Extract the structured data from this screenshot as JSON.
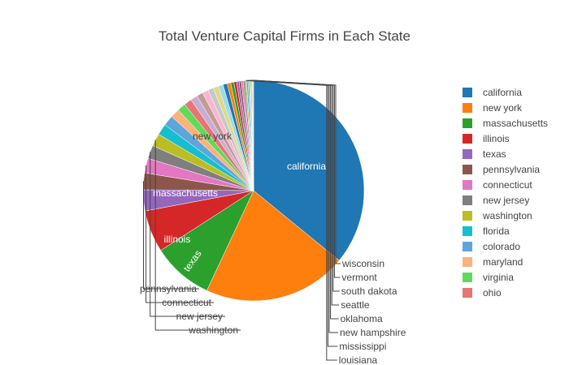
{
  "chart_data": {
    "type": "pie",
    "title": "Total Venture Capital Firms in Each State",
    "legend_position": "right",
    "slices": [
      {
        "label": "california",
        "value": 35.0,
        "color": "#1f77b4"
      },
      {
        "label": "new york",
        "value": 20.5,
        "color": "#ff7f0e"
      },
      {
        "label": "massachusetts",
        "value": 8.7,
        "color": "#2ca02c"
      },
      {
        "label": "illinois",
        "value": 6.0,
        "color": "#d62728"
      },
      {
        "label": "texas",
        "value": 3.0,
        "color": "#9467bd"
      },
      {
        "label": "pennsylvania",
        "value": 2.4,
        "color": "#8c564b"
      },
      {
        "label": "connecticut",
        "value": 2.1,
        "color": "#e377c2"
      },
      {
        "label": "new jersey",
        "value": 1.9,
        "color": "#7f7f7f"
      },
      {
        "label": "washington",
        "value": 1.8,
        "color": "#bcbd22"
      },
      {
        "label": "florida",
        "value": 1.6,
        "color": "#17becf"
      },
      {
        "label": "colorado",
        "value": 1.5,
        "color": "#5da5da"
      },
      {
        "label": "maryland",
        "value": 1.3,
        "color": "#fdb279"
      },
      {
        "label": "virginia",
        "value": 1.2,
        "color": "#62d95b"
      },
      {
        "label": "ohio",
        "value": 1.1,
        "color": "#e87474"
      },
      {
        "label": "",
        "value": 1.0,
        "color": "#c5b0d5"
      },
      {
        "label": "",
        "value": 0.9,
        "color": "#c49c94"
      },
      {
        "label": "",
        "value": 0.85,
        "color": "#f7b6d2"
      },
      {
        "label": "",
        "value": 0.8,
        "color": "#c7c7c7"
      },
      {
        "label": "",
        "value": 0.75,
        "color": "#dbdb8d"
      },
      {
        "label": "",
        "value": 0.7,
        "color": "#9edae5"
      },
      {
        "label": "",
        "value": 0.6,
        "color": "#1f77b4"
      },
      {
        "label": "",
        "value": 0.5,
        "color": "#ff7f0e"
      },
      {
        "label": "",
        "value": 0.45,
        "color": "#2ca02c"
      },
      {
        "label": "",
        "value": 0.4,
        "color": "#d62728"
      },
      {
        "label": "",
        "value": 0.35,
        "color": "#9467bd"
      },
      {
        "label": "",
        "value": 0.3,
        "color": "#8c564b"
      },
      {
        "label": "",
        "value": 0.3,
        "color": "#e377c2"
      },
      {
        "label": "",
        "value": 0.25,
        "color": "#7f7f7f"
      },
      {
        "label": "louisiana",
        "value": 0.2,
        "color": "#bcbd22"
      },
      {
        "label": "mississippi",
        "value": 0.2,
        "color": "#17becf"
      },
      {
        "label": "new hampshire",
        "value": 0.2,
        "color": "#5da5da"
      },
      {
        "label": "oklahoma",
        "value": 0.15,
        "color": "#fdb279"
      },
      {
        "label": "seattle",
        "value": 0.15,
        "color": "#62d95b"
      },
      {
        "label": "south dakota",
        "value": 0.1,
        "color": "#e87474"
      },
      {
        "label": "vermont",
        "value": 0.1,
        "color": "#c5b0d5"
      },
      {
        "label": "wisconsin",
        "value": 0.1,
        "color": "#c49c94"
      }
    ],
    "inside_labels": [
      "california",
      "new york",
      "massachusetts",
      "illinois",
      "texas"
    ],
    "outside_labels_left": [
      "pennsylvania",
      "connecticut",
      "new jersey",
      "washington"
    ],
    "outside_labels_right": [
      "wisconsin",
      "vermont",
      "south dakota",
      "seattle",
      "oklahoma",
      "new hampshire",
      "mississippi",
      "louisiana"
    ],
    "legend": [
      "california",
      "new york",
      "massachusetts",
      "illinois",
      "texas",
      "pennsylvania",
      "connecticut",
      "new jersey",
      "washington",
      "florida",
      "colorado",
      "maryland",
      "virginia",
      "ohio"
    ]
  }
}
